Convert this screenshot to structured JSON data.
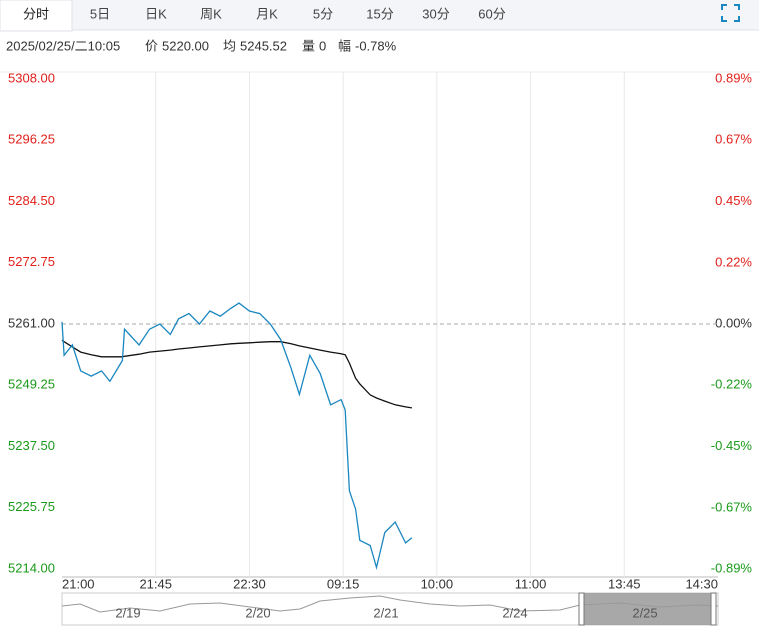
{
  "tabs": [
    "分时",
    "5日",
    "日K",
    "周K",
    "月K",
    "5分",
    "15分",
    "30分",
    "60分"
  ],
  "info": {
    "time": "2025/02/25/二10:05",
    "price_label": "价",
    "price": "5220.00",
    "avg_label": "均",
    "avg": "5245.52",
    "volume_label": "量",
    "volume": "0",
    "change_label": "幅",
    "change": "-0.78%"
  },
  "navigator": {
    "dates": [
      "2/19",
      "2/20",
      "2/21",
      "2/24",
      "2/25"
    ]
  },
  "chart_data": {
    "type": "line",
    "x": [
      0,
      1,
      5,
      9,
      14,
      19,
      23,
      29,
      30,
      37,
      42,
      47,
      52,
      56,
      61,
      66,
      71,
      76,
      81,
      85,
      90,
      95,
      100,
      105,
      110,
      114,
      119,
      124,
      129,
      134,
      136,
      138,
      141,
      143,
      148,
      151,
      155,
      160,
      165,
      168
    ],
    "series": [
      {
        "name": "价",
        "color": "#1a87c0",
        "values": [
          5261.4,
          5255.0,
          5257.0,
          5252.0,
          5251.0,
          5252.0,
          5250.0,
          5254.0,
          5260.0,
          5257.0,
          5260.0,
          5261.0,
          5259.0,
          5262.0,
          5263.0,
          5261.0,
          5263.5,
          5262.5,
          5264.0,
          5265.0,
          5263.5,
          5263.0,
          5261.0,
          5258.0,
          5252.5,
          5247.5,
          5255.0,
          5251.5,
          5245.5,
          5246.5,
          5244.5,
          5229.0,
          5225.5,
          5219.5,
          5218.5,
          5214.3,
          5221.0,
          5223.0,
          5219.0,
          5220.0
        ]
      },
      {
        "name": "均",
        "color": "#111111",
        "values": [
          5257.9,
          5257.6,
          5256.6,
          5255.6,
          5255.1,
          5254.7,
          5254.7,
          5254.7,
          5254.8,
          5255.2,
          5255.6,
          5255.8,
          5256.0,
          5256.2,
          5256.4,
          5256.6,
          5256.8,
          5257.0,
          5257.2,
          5257.3,
          5257.4,
          5257.5,
          5257.6,
          5257.6,
          5257.2,
          5256.8,
          5256.4,
          5256.0,
          5255.6,
          5255.3,
          5255.1,
          5253.5,
          5250.6,
          5249.5,
          5247.4,
          5246.8,
          5246.2,
          5245.5,
          5245.1,
          5244.9
        ]
      }
    ],
    "xlim": [
      0,
      315
    ],
    "xticks": [
      {
        "value": 0,
        "label": "21:00"
      },
      {
        "value": 45,
        "label": "21:45"
      },
      {
        "value": 90,
        "label": "22:30"
      },
      {
        "value": 135,
        "label": "09:15"
      },
      {
        "value": 180,
        "label": "10:00"
      },
      {
        "value": 225,
        "label": "11:00"
      },
      {
        "value": 270,
        "label": "13:45"
      },
      {
        "value": 315,
        "label": "14:30"
      }
    ],
    "ylim": [
      5214,
      5308
    ],
    "yticks": [
      {
        "value": 5308,
        "label": "5308.00"
      },
      5296.25,
      {
        "value": 5284.5,
        "label": "5284.50"
      },
      5272.75,
      {
        "value": 5261,
        "label": "5261.00"
      },
      5249.25,
      {
        "value": 5237.5,
        "label": "5237.50"
      },
      5225.75,
      {
        "value": 5214,
        "label": "5214.00"
      }
    ],
    "y2lim": [
      -0.893,
      0.893
    ],
    "y2ticks": [
      {
        "value": 0.893,
        "label": "0.89%"
      },
      {
        "value": 0.67,
        "label": "0.67%"
      },
      {
        "value": 0.447,
        "label": "0.45%"
      },
      {
        "value": 0.223,
        "label": "0.22%"
      },
      {
        "value": 0,
        "label": "0.00%"
      },
      {
        "value": -0.223,
        "label": "-0.22%"
      },
      {
        "value": -0.447,
        "label": "-0.45%"
      },
      {
        "value": -0.67,
        "label": "-0.67%"
      },
      {
        "value": -0.893,
        "label": "-0.89%"
      }
    ],
    "baseline": 5261,
    "grid": true,
    "up_color": "#e0211c",
    "down_color": "#1a9a1a",
    "flat_color": "#333333"
  }
}
